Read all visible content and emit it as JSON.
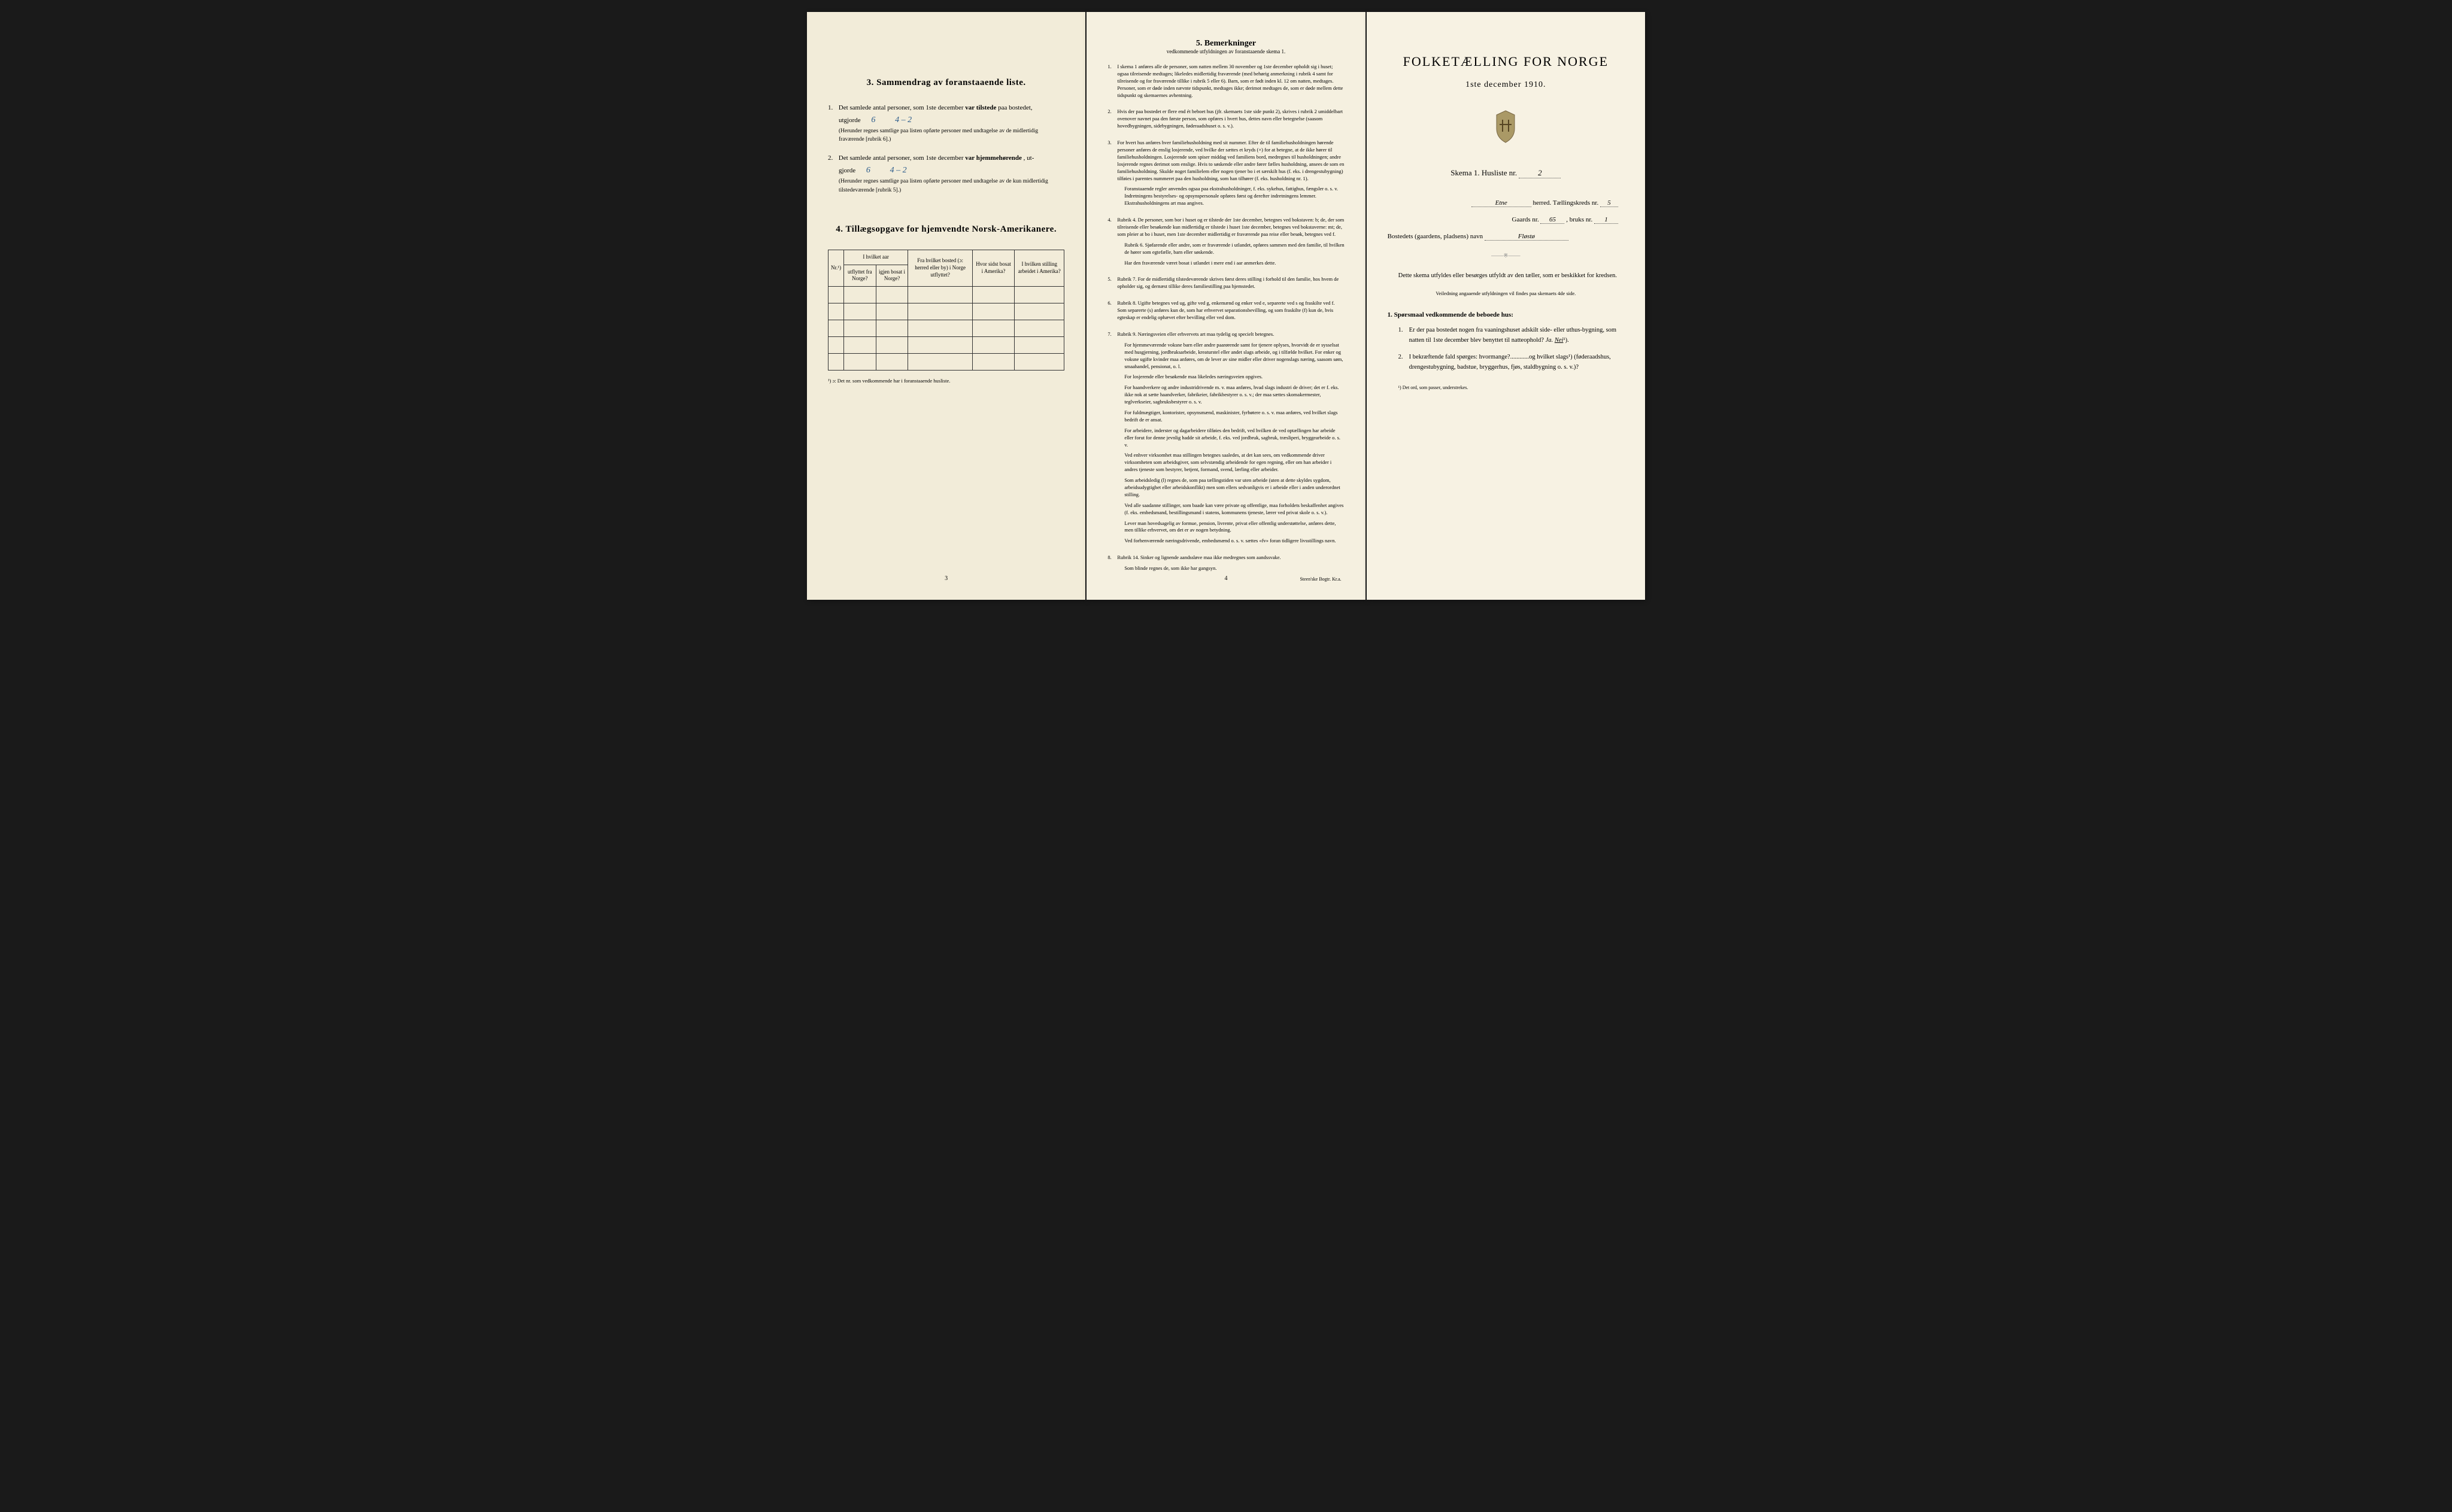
{
  "left": {
    "section3": {
      "title": "3.   Sammendrag av foranstaaende liste.",
      "item1_prefix": "Det samlede antal personer, som 1ste december",
      "item1_bold": "var tilstede",
      "item1_suffix": "paa bostedet,",
      "utgjorde": "utgjorde",
      "value1": "6",
      "value1_note": "4 – 2",
      "sub1": "(Herunder regnes samtlige paa listen opførte personer med undtagelse av de midlertidig fraværende [rubrik 6].)",
      "item2_prefix": "Det samlede antal personer, som 1ste december",
      "item2_bold": "var hjemmehørende",
      "item2_suffix": ", ut-",
      "gjorde": "gjorde",
      "value2": "6",
      "value2_note": "4 – 2",
      "sub2": "(Herunder regnes samtlige paa listen opførte personer med undtagelse av de kun midlertidig tilstedeværende [rubrik 5].)"
    },
    "section4": {
      "title": "4.   Tillægsopgave for hjemvendte Norsk-Amerikanere.",
      "headers": {
        "nr": "Nr.¹)",
        "col1": "I hvilket aar utflyttet fra Norge?",
        "col2": "igjen bosat i Norge?",
        "col3": "Fra hvilket bosted (ɔ: herred eller by) i Norge utflyttet?",
        "col4": "Hvor sidst bosat i Amerika?",
        "col5": "I hvilken stilling arbeidet i Amerika?"
      },
      "footnote": "¹) ɔ: Det nr. som vedkommende har i foranstaaende husliste."
    },
    "page_num": "3"
  },
  "middle": {
    "title": "5.   Bemerkninger",
    "subtitle": "vedkommende utfyldningen av foranstaaende skema 1.",
    "items": [
      {
        "n": "1.",
        "paras": [
          "I skema 1 anføres alle de personer, som natten mellem 30 november og 1ste december opholdt sig i huset; ogsaa tilreisende medtages; likeledes midlertidig fraværende (med behørig anmerkning i rubrik 4 samt for tilreisende og for fraværende tillike i rubrik 5 eller 6). Barn, som er født inden kl. 12 om natten, medtages. Personer, som er døde inden nævnte tidspunkt, medtages ikke; derimot medtages de, som er døde mellem dette tidspunkt og skemaernes avhentning."
        ]
      },
      {
        "n": "2.",
        "paras": [
          "Hvis der paa bostedet er flere end ét beboet hus (jfr. skemaets 1ste side punkt 2), skrives i rubrik 2 umiddelbart ovenover navnet paa den første person, som opføres i hvert hus, dettes navn eller betegnelse (saasom hovedbygningen, sidebygningen, føderaadshuset o. s. v.)."
        ]
      },
      {
        "n": "3.",
        "paras": [
          "For hvert hus anføres hver familiehusholdning med sit nummer. Efter de til familiehusholdningen hørende personer anføres de enslig losjerende, ved hvilke der sættes et kryds (×) for at betegne, at de ikke hører til familiehusholdningen. Losjerende som spiser middag ved familiens bord, medregnes til husholdningen; andre losjerende regnes derimot som enslige. Hvis to søskende eller andre fører fælles husholdning, ansees de som en familiehusholdning. Skulde noget familielem eller nogen tjener bo i et særskilt hus (f. eks. i drengestubygning) tilføies i parentes nummeret paa den husholdning, som han tilhører (f. eks. husholdning nr. 1).",
          "Foranstaaende regler anvendes ogsaa paa ekstrahusholdninger, f. eks. sykehus, fattighus, fængsler o. s. v. Indretningens bestyrelses- og opsynspersonale opføres først og derefter indretningens lemmer. Ekstrahusholdningens art maa angives."
        ]
      },
      {
        "n": "4.",
        "paras": [
          "Rubrik 4. De personer, som bor i huset og er tilstede der 1ste december, betegnes ved bokstaven: b; de, der som tilreisende eller besøkende kun midlertidig er tilstede i huset 1ste december, betegnes ved bokstaverne: mt; de, som pleier at bo i huset, men 1ste december midlertidig er fraværende paa reise eller besøk, betegnes ved f.",
          "Rubrik 6. Sjøfarende eller andre, som er fraværende i utlandet, opføres sammen med den familie, til hvilken de hører som egtefælle, barn eller søskende.",
          "Har den fraværende været bosat i utlandet i mere end i aar anmerkes dette."
        ]
      },
      {
        "n": "5.",
        "paras": [
          "Rubrik 7. For de midlertidig tilstedeværende skrives først deres stilling i forhold til den familie, hos hvem de opholder sig, og dernæst tillike deres familiestilling paa hjemstedet."
        ]
      },
      {
        "n": "6.",
        "paras": [
          "Rubrik 8. Ugifte betegnes ved ug, gifte ved g, enkemænd og enker ved e, separerte ved s og fraskilte ved f. Som separerte (s) anføres kun de, som har erhvervet separationsbevilling, og som fraskilte (f) kun de, hvis egteskap er endelig ophævet efter bevilling eller ved dom."
        ]
      },
      {
        "n": "7.",
        "paras": [
          "Rubrik 9. Næringsveien eller erhvervets art maa tydelig og specielt betegnes.",
          "For hjemmeværende voksne barn eller andre paarørende samt for tjenere oplyses, hvorvidt de er sysselsat med husgjerning, jordbruksarbeide, kreaturstel eller andet slags arbeide, og i tilfælde hvilket. For enker og voksne ugifte kvinder maa anføres, om de lever av sine midler eller driver nogenslags næring, saasom søm, smaahandel, pensionat, o. l.",
          "For losjerende eller besøkende maa likeledes næringsveien opgives.",
          "For haandverkere og andre industridrivende m. v. maa anføres, hvad slags industri de driver; det er f. eks. ikke nok at sætte haandverker, fabrikeier, fabrikbestyrer o. s. v.; der maa sættes skomakermester, teglverkseier, sagbruksbestyrer o. s. v.",
          "For fuldmægtiger, kontorister, opsynsmænd, maskinister, fyrbøtere o. s. v. maa anføres, ved hvilket slags bedrift de er ansat.",
          "For arbeidere, inderster og dagarbeidere tilføies den bedrift, ved hvilken de ved optællingen har arbeide eller forut for denne jevnlig hadde sit arbeide, f. eks. ved jordbruk, sagbruk, træsliperi, bryggearbeide o. s. v.",
          "Ved enhver virksomhet maa stillingen betegnes saaledes, at det kan sees, om vedkommende driver virksomheten som arbeidsgiver, som selvstændig arbeidende for egen regning, eller om han arbeider i andres tjeneste som bestyrer, betjent, formand, svend, lærling eller arbeider.",
          "Som arbeidsledig (l) regnes de, som paa tællingstiden var uten arbeide (uten at dette skyldes sygdom, arbeidsudygtighet eller arbeidskonflikt) men som ellers sedvanligvis er i arbeide eller i anden underordnet stilling.",
          "Ved alle saadanne stillinger, som baade kan være private og offentlige, maa forholdets beskaffenhet angives (f. eks. embedsmand, bestillingsmand i statens, kommunens tjeneste, lærer ved privat skole o. s. v.).",
          "Lever man hovedsagelig av formue, pension, livrente, privat eller offentlig understøttelse, anføres dette, men tillike erhvervet, om det er av nogen betydning.",
          "Ved forhenværende næringsdrivende, embedsmænd o. s. v. sættes «fv» foran tidligere livsstillings navn."
        ]
      },
      {
        "n": "8.",
        "paras": [
          "Rubrik 14. Sinker og lignende aandssløve maa ikke medregnes som aandssvake.",
          "Som blinde regnes de, som ikke har gangsyn."
        ]
      }
    ],
    "page_num": "4",
    "printer": "Steen'ske Bogtr. Kr.a."
  },
  "right": {
    "title": "FOLKETÆLLING FOR NORGE",
    "date": "1ste december 1910.",
    "skema_label": "Skema 1.   Husliste nr.",
    "skema_value": "2",
    "herred_label": "herred.   Tællingskreds nr.",
    "herred_name": "Etne",
    "kreds_value": "5",
    "gaard_label": "Gaards nr.",
    "gaard_value": "65",
    "bruk_label": ", bruks nr.",
    "bruk_value": "1",
    "bosted_label": "Bostedets (gaardens, pladsens) navn",
    "bosted_value": "Fløstø",
    "instruction": "Dette skema utfyldes eller besørges utfyldt av den tæller, som er beskikket for kredsen.",
    "instruction_small": "Veiledning angaaende utfyldningen vil findes paa skemaets 4de side.",
    "q_header": "1. Spørsmaal vedkommende de beboede hus:",
    "q1": "Er der paa bostedet nogen fra vaaningshuset adskilt side- eller uthus-bygning, som natten til 1ste december blev benyttet til natteophold?",
    "q1_ja": "Ja.",
    "q1_nei": "Nei",
    "q1_sup": "¹).",
    "q2": "I bekræftende fald spørges: hvormange?............og hvilket slags¹) (føderaadshus, drengestubygning, badstue, bryggerhus, fjøs, staldbygning o. s. v.)?",
    "footnote": "¹) Det ord, som passer, understrekes."
  }
}
